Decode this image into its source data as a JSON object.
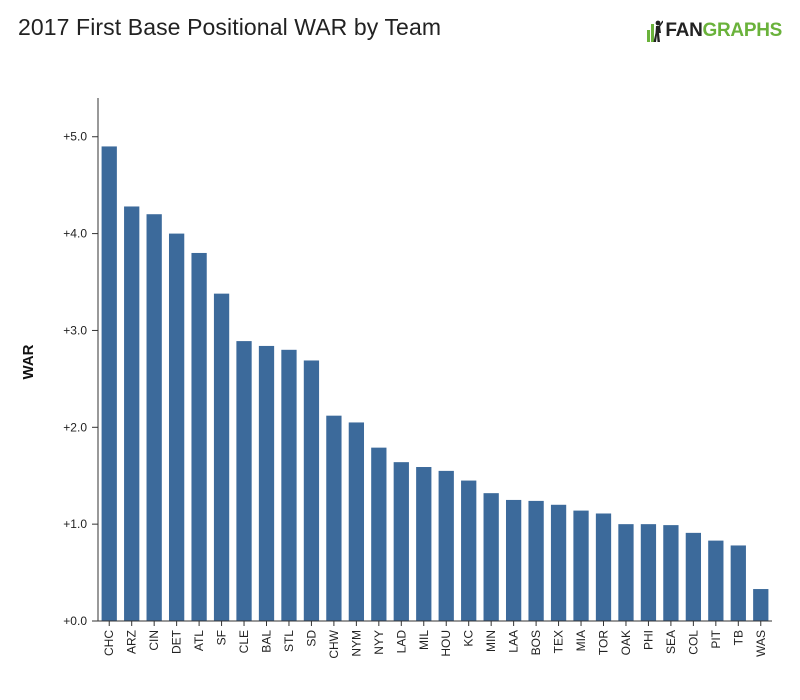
{
  "header": {
    "title": "2017 First Base Positional WAR by Team",
    "logo_fan": "FAN",
    "logo_graphs": "GRAPHS"
  },
  "colors": {
    "bar": "#3c6a9b",
    "axis": "#333333",
    "logo_green": "#6ab23b"
  },
  "chart_data": {
    "type": "bar",
    "title": "2017 First Base Positional WAR by Team",
    "xlabel": "",
    "ylabel": "WAR",
    "ylim": [
      0,
      5.4
    ],
    "yticks": [
      0,
      1,
      2,
      3,
      4,
      5
    ],
    "ytick_labels": [
      "+0.0",
      "+1.0",
      "+2.0",
      "+3.0",
      "+4.0",
      "+5.0"
    ],
    "grid": false,
    "categories": [
      "CHC",
      "ARZ",
      "CIN",
      "DET",
      "ATL",
      "SF",
      "CLE",
      "BAL",
      "STL",
      "SD",
      "CHW",
      "NYM",
      "NYY",
      "LAD",
      "MIL",
      "HOU",
      "KC",
      "MIN",
      "LAA",
      "BOS",
      "TEX",
      "MIA",
      "TOR",
      "OAK",
      "PHI",
      "SEA",
      "COL",
      "PIT",
      "TB",
      "WAS"
    ],
    "values": [
      4.9,
      4.28,
      4.2,
      4.0,
      3.8,
      3.38,
      2.89,
      2.84,
      2.8,
      2.69,
      2.12,
      2.05,
      1.79,
      1.64,
      1.59,
      1.55,
      1.45,
      1.32,
      1.25,
      1.24,
      1.2,
      1.14,
      1.11,
      1.0,
      1.0,
      0.99,
      0.91,
      0.83,
      0.78,
      0.33
    ]
  }
}
